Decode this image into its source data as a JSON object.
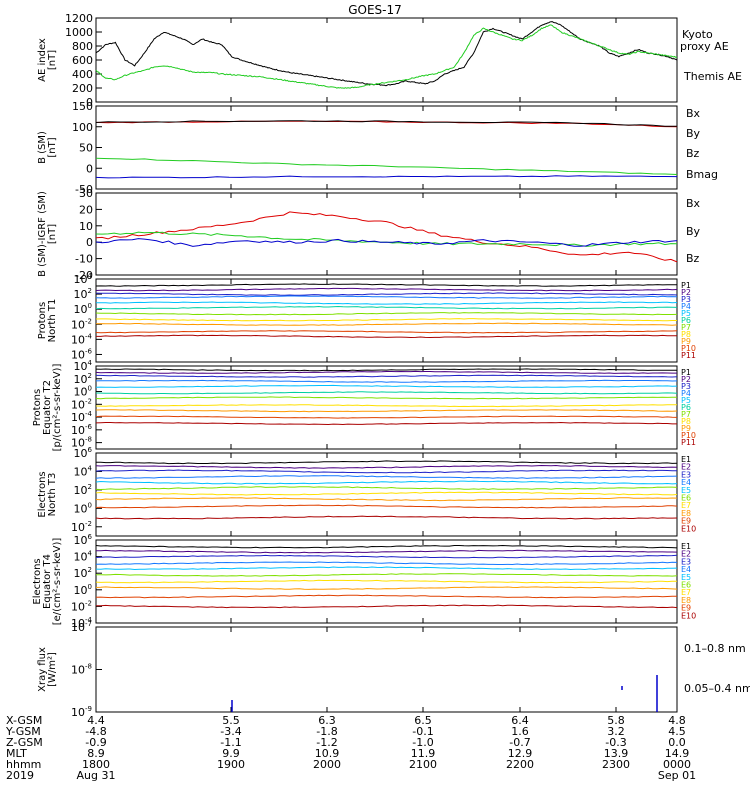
{
  "title": "GOES-17",
  "colors": {
    "black": "#000000",
    "green": "#22cc22",
    "blue": "#0000cc",
    "red": "#dd0000",
    "panel_frame": "#000000"
  },
  "panel_colors": {
    "P1": "#000000",
    "P2": "#4b0082",
    "P3": "#1e22c8",
    "P4": "#1478ff",
    "P5": "#00c0ff",
    "P6": "#00d0a0",
    "P7": "#7fe000",
    "P8": "#ffe000",
    "P9": "#ff9a00",
    "P10": "#e04000",
    "P11": "#aa0000",
    "E1": "#000000",
    "E2": "#4b0082",
    "E3": "#1e22c8",
    "E4": "#1478ff",
    "E5": "#00c0ff",
    "E6": "#7fe000",
    "E7": "#ffe000",
    "E8": "#ff9a00",
    "E9": "#e04000",
    "E10": "#aa0000"
  },
  "chart_data": [
    {
      "type": "line",
      "ylabel": "AE index [nT]",
      "ylim": [
        0,
        1200
      ],
      "yticks": [
        "1200",
        "1000",
        "800",
        "600",
        "400",
        "200",
        "0"
      ],
      "ytick_values": [
        1200,
        1000,
        800,
        600,
        400,
        200,
        0
      ],
      "legend": [
        "Kyoto proxy AE",
        "Themis AE"
      ],
      "x": [
        0,
        0.1,
        0.2,
        0.3,
        0.4,
        0.5,
        0.6,
        0.7,
        0.8,
        0.9,
        1.0,
        1.1,
        1.2,
        1.3,
        1.4,
        1.5,
        1.6,
        1.7,
        1.8,
        1.9,
        2.0,
        2.1,
        2.2,
        2.3,
        2.4,
        2.5,
        2.6,
        2.7,
        2.8,
        2.9,
        3.0,
        3.1,
        3.2,
        3.3,
        3.4,
        3.5,
        3.6,
        3.7,
        3.8,
        3.9,
        4.0,
        4.1,
        4.2,
        4.3,
        4.4,
        4.5,
        4.6,
        4.7,
        4.8,
        4.9,
        5.0,
        5.1,
        5.2,
        5.3,
        5.4,
        5.5,
        5.6,
        5.7,
        5.8,
        5.9,
        6.0
      ],
      "series": [
        {
          "name": "Themis AE",
          "color": "#000000",
          "values": [
            700,
            820,
            850,
            600,
            520,
            700,
            900,
            1000,
            950,
            900,
            820,
            900,
            850,
            820,
            650,
            600,
            560,
            520,
            480,
            450,
            420,
            400,
            380,
            360,
            340,
            320,
            300,
            280,
            260,
            250,
            240,
            260,
            300,
            280,
            260,
            300,
            400,
            450,
            500,
            700,
            1000,
            1050,
            1000,
            950,
            900,
            1000,
            1100,
            1150,
            1100,
            1000,
            900,
            850,
            800,
            700,
            650,
            700,
            750,
            700,
            680,
            650,
            600
          ]
        },
        {
          "name": "Kyoto proxy AE",
          "color": "#22cc22",
          "values": [
            450,
            340,
            320,
            380,
            420,
            450,
            500,
            520,
            500,
            460,
            430,
            420,
            420,
            400,
            390,
            380,
            370,
            360,
            340,
            320,
            300,
            280,
            260,
            240,
            220,
            200,
            200,
            210,
            240,
            260,
            280,
            300,
            320,
            350,
            380,
            400,
            450,
            500,
            700,
            950,
            1050,
            1000,
            950,
            900,
            880,
            950,
            1050,
            1100,
            1000,
            950,
            900,
            850,
            800,
            750,
            700,
            680,
            720,
            700,
            680,
            660,
            640
          ]
        }
      ]
    },
    {
      "type": "line",
      "ylabel": "B (SM) [nT]",
      "ylim": [
        -50,
        150
      ],
      "yticks": [
        "150",
        "100",
        "50",
        "0",
        "-50"
      ],
      "ytick_values": [
        150,
        100,
        50,
        0,
        -50
      ],
      "legend": [
        "Bx",
        "By",
        "Bz",
        "Bmag"
      ],
      "x": [
        0,
        1,
        2,
        3,
        4,
        5,
        6
      ],
      "series": [
        {
          "name": "Bx",
          "color": "#0000cc",
          "values": [
            -22,
            -22,
            -20,
            -20,
            -20,
            -19,
            -20
          ]
        },
        {
          "name": "By",
          "color": "#22cc22",
          "values": [
            25,
            18,
            10,
            5,
            -2,
            -8,
            -15
          ]
        },
        {
          "name": "Bz",
          "color": "#dd0000",
          "values": [
            110,
            112,
            113,
            112,
            110,
            108,
            100
          ]
        },
        {
          "name": "Bmag",
          "color": "#000000",
          "values": [
            111,
            113,
            114,
            113,
            111,
            109,
            101
          ]
        }
      ]
    },
    {
      "type": "line",
      "ylabel": "B (SM)-IGRF (SM) [nT]",
      "ylim": [
        -20,
        30
      ],
      "yticks": [
        "30",
        "20",
        "10",
        "0",
        "-10",
        "-20"
      ],
      "ytick_values": [
        30,
        20,
        10,
        0,
        -10,
        -20
      ],
      "legend": [
        "Bx",
        "By",
        "Bz"
      ],
      "x": [
        0,
        0.5,
        1.0,
        1.5,
        2.0,
        2.5,
        3.0,
        3.5,
        4.0,
        4.5,
        5.0,
        5.5,
        6.0
      ],
      "series": [
        {
          "name": "Bz",
          "color": "#dd0000",
          "values": [
            2,
            5,
            8,
            12,
            18,
            16,
            12,
            5,
            0,
            -3,
            -8,
            -6,
            -12
          ]
        },
        {
          "name": "By",
          "color": "#22cc22",
          "values": [
            5,
            6,
            5,
            4,
            2,
            1,
            0,
            -1,
            -1,
            -1,
            -2,
            -1,
            -1
          ]
        },
        {
          "name": "Bx",
          "color": "#0000cc",
          "values": [
            0,
            2,
            -2,
            1,
            0,
            1,
            0,
            -1,
            1,
            0,
            -2,
            0,
            1
          ]
        }
      ]
    },
    {
      "type": "line",
      "ylabel": "Protons North T1",
      "yscale": "log",
      "ylim_exp": [
        -7,
        4
      ],
      "ytick_exps": [
        4,
        2,
        0,
        -2,
        -4,
        -6
      ],
      "channels": [
        "P1",
        "P2",
        "P3",
        "P4",
        "P5",
        "P6",
        "P7",
        "P8",
        "P9",
        "P10",
        "P11"
      ],
      "levels_exp": [
        3.2,
        2.6,
        2.0,
        1.6,
        0.8,
        0.2,
        -0.6,
        -1.4,
        -2.0,
        -3.0,
        -3.6
      ]
    },
    {
      "type": "line",
      "ylabel": "Protons Equator T2 [p/(cm²-s-sr-keV)]",
      "yscale": "log",
      "ylim_exp": [
        -9,
        4
      ],
      "ytick_exps": [
        4,
        2,
        0,
        -2,
        -4,
        -6,
        -8
      ],
      "channels": [
        "P1",
        "P2",
        "P3",
        "P4",
        "P5",
        "P6",
        "P7",
        "P8",
        "P9",
        "P10",
        "P11"
      ],
      "levels_exp": [
        3.4,
        3.0,
        2.4,
        1.6,
        0.8,
        -0.2,
        -1.0,
        -2.2,
        -3.0,
        -4.0,
        -5.0
      ]
    },
    {
      "type": "line",
      "ylabel": "Electrons North T3",
      "yscale": "log",
      "ylim_exp": [
        -3,
        6
      ],
      "ytick_exps": [
        6,
        4,
        2,
        0,
        -2
      ],
      "channels": [
        "E1",
        "E2",
        "E3",
        "E4",
        "E5",
        "E6",
        "E7",
        "E8",
        "E9",
        "E10"
      ],
      "levels_exp": [
        5.0,
        4.5,
        4.0,
        3.4,
        2.8,
        2.2,
        1.6,
        1.0,
        0.2,
        -1.0
      ]
    },
    {
      "type": "line",
      "ylabel": "Electrons Equator T4 [e/(cm²-s-sr-keV)]",
      "yscale": "log",
      "ylim_exp": [
        -4,
        6
      ],
      "ytick_exps": [
        6,
        4,
        2,
        0,
        -2,
        -4
      ],
      "channels": [
        "E1",
        "E2",
        "E3",
        "E4",
        "E5",
        "E6",
        "E7",
        "E8",
        "E9",
        "E10"
      ],
      "levels_exp": [
        5.2,
        4.6,
        4.0,
        3.2,
        2.6,
        1.8,
        1.0,
        0.2,
        -0.8,
        -2.0
      ]
    },
    {
      "type": "line",
      "ylabel": "Xray flux [W/m²]",
      "yscale": "log",
      "ylim_exp": [
        -9,
        -7
      ],
      "ytick_exps": [
        -7,
        -8,
        -9
      ],
      "legend": [
        "0.1–0.8 nm",
        "0.05–0.4 nm"
      ],
      "series": [
        {
          "name": "0.1–0.8 nm",
          "color": "#dd0000"
        },
        {
          "name": "0.05–0.4 nm",
          "color": "#0000cc"
        }
      ]
    }
  ],
  "bottom_axis": {
    "row_labels": [
      "X-GSM",
      "Y-GSM",
      "Z-GSM",
      "MLT",
      "hhmm",
      "2019"
    ],
    "columns": [
      [
        "4.4",
        "-4.8",
        "-0.9",
        "8.9",
        "1800",
        "Aug 31"
      ],
      [
        "5.5",
        "-3.4",
        "-1.1",
        "9.9",
        "1900",
        ""
      ],
      [
        "6.3",
        "-1.8",
        "-1.2",
        "10.9",
        "2000",
        ""
      ],
      [
        "6.5",
        "-0.1",
        "-1.0",
        "11.9",
        "2100",
        ""
      ],
      [
        "6.4",
        "1.6",
        "-0.7",
        "12.9",
        "2200",
        ""
      ],
      [
        "5.8",
        "3.2",
        "-0.3",
        "13.9",
        "2300",
        ""
      ],
      [
        "4.8",
        "4.5",
        "0.0",
        "14.9",
        "0000",
        "Sep 01"
      ]
    ]
  }
}
